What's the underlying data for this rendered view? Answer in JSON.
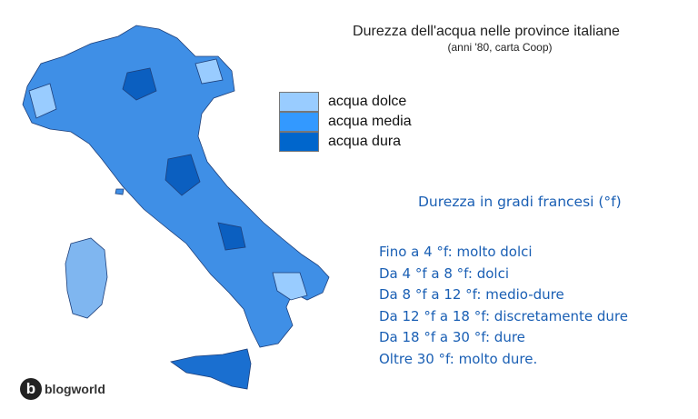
{
  "title": "Durezza dell'acqua nelle province italiane",
  "subtitle": "(anni '80, carta Coop)",
  "colors": {
    "dolce": "#99ccff",
    "media": "#3399ff",
    "dura": "#0066cc",
    "scale_text": "#1a5fb4"
  },
  "legend": [
    {
      "label": "acqua dolce",
      "color": "#99ccff"
    },
    {
      "label": "acqua media",
      "color": "#3399ff"
    },
    {
      "label": "acqua dura",
      "color": "#0066cc"
    }
  ],
  "scale": {
    "title": "Durezza in gradi francesi (°f)",
    "items": [
      "Fino a 4 °f: molto dolci",
      "Da 4 °f a 8 °f: dolci",
      "Da 8 °f a 12 °f: medio-dure",
      "Da 12 °f a 18 °f: discretamente dure",
      "Da 18 °f a 30 °f: dure",
      "Oltre 30 °f: molto dure."
    ]
  },
  "logo": {
    "letter": "b",
    "text": "blogworld"
  }
}
